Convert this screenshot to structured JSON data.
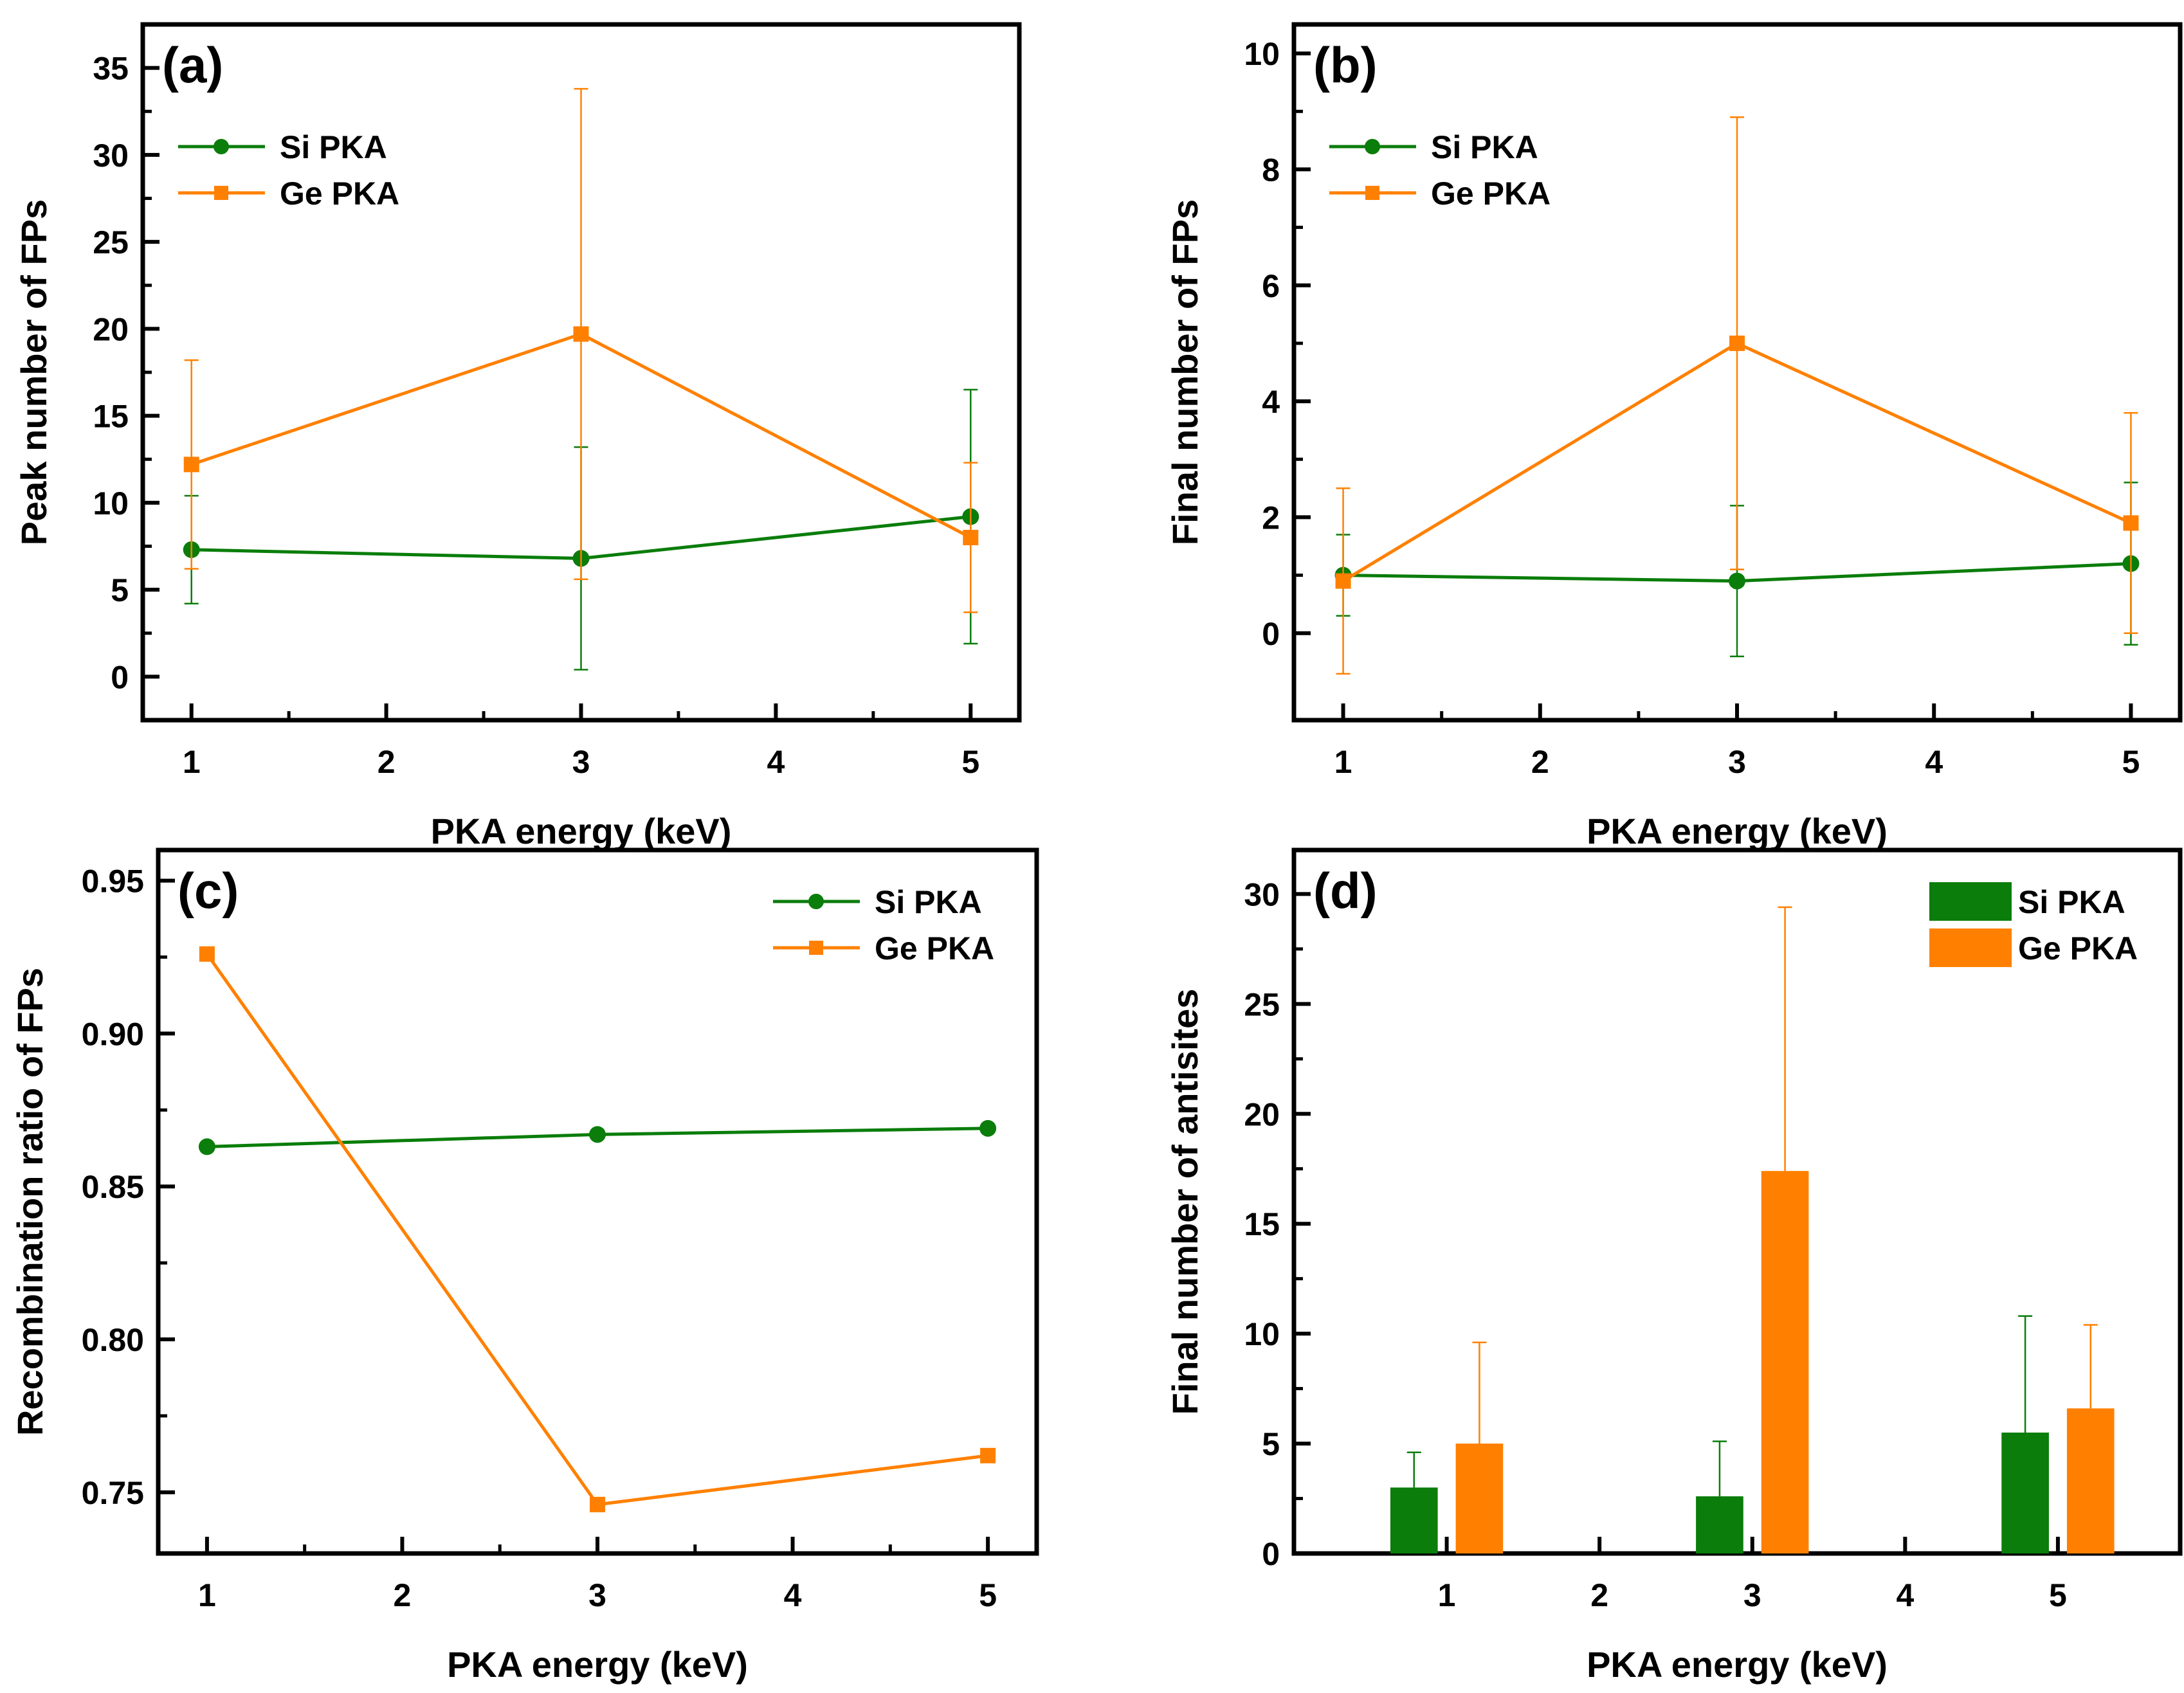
{
  "colors": {
    "si": "#0a7d0a",
    "ge": "#ff8000",
    "axis": "#000000"
  },
  "chart_data": [
    {
      "id": "a",
      "type": "line",
      "panel_label": "(a)",
      "xlabel": "PKA energy (keV)",
      "ylabel": "Peak number of FPs",
      "xlim": [
        0.75,
        5.25
      ],
      "ylim": [
        -2.5,
        37.5
      ],
      "xticks": [
        1,
        2,
        3,
        4,
        5
      ],
      "xtick_labels": [
        "1",
        "2",
        "3",
        "4",
        "5"
      ],
      "yticks": [
        0,
        5,
        10,
        15,
        20,
        25,
        30,
        35
      ],
      "ytick_labels": [
        "0",
        "5",
        "10",
        "15",
        "20",
        "25",
        "30",
        "35"
      ],
      "legend_position": "top-left",
      "x": [
        1,
        3,
        5
      ],
      "series": [
        {
          "name": "Si PKA",
          "marker": "circle",
          "color_key": "si",
          "values": [
            7.3,
            6.8,
            9.2
          ],
          "err": [
            3.1,
            6.4,
            7.3
          ]
        },
        {
          "name": "Ge PKA",
          "marker": "square",
          "color_key": "ge",
          "values": [
            12.2,
            19.7,
            8.0
          ],
          "err": [
            6.0,
            14.1,
            4.3
          ]
        }
      ]
    },
    {
      "id": "b",
      "type": "line",
      "panel_label": "(b)",
      "xlabel": "PKA energy (keV)",
      "ylabel": "Final number of FPs",
      "xlim": [
        0.75,
        5.25
      ],
      "ylim": [
        -1.5,
        10.5
      ],
      "xticks": [
        1,
        2,
        3,
        4,
        5
      ],
      "xtick_labels": [
        "1",
        "2",
        "3",
        "4",
        "5"
      ],
      "yticks": [
        0,
        2,
        4,
        6,
        8,
        10
      ],
      "ytick_labels": [
        "0",
        "2",
        "4",
        "6",
        "8",
        "10"
      ],
      "legend_position": "top-left",
      "x": [
        1,
        3,
        5
      ],
      "series": [
        {
          "name": "Si PKA",
          "marker": "circle",
          "color_key": "si",
          "values": [
            1.0,
            0.9,
            1.2
          ],
          "err": [
            0.7,
            1.3,
            1.4
          ]
        },
        {
          "name": "Ge PKA",
          "marker": "square",
          "color_key": "ge",
          "values": [
            0.9,
            5.0,
            1.9
          ],
          "err": [
            1.6,
            3.9,
            1.9
          ]
        }
      ]
    },
    {
      "id": "c",
      "type": "line",
      "panel_label": "(c)",
      "xlabel": "PKA energy (keV)",
      "ylabel": "Recombination ratio of FPs",
      "xlim": [
        0.75,
        5.25
      ],
      "ylim": [
        0.73,
        0.96
      ],
      "xticks": [
        1,
        2,
        3,
        4,
        5
      ],
      "xtick_labels": [
        "1",
        "2",
        "3",
        "4",
        "5"
      ],
      "yticks": [
        0.75,
        0.8,
        0.85,
        0.9,
        0.95
      ],
      "ytick_labels": [
        "0.75",
        "0.80",
        "0.85",
        "0.90",
        "0.95"
      ],
      "legend_position": "top-right",
      "x": [
        1,
        3,
        5
      ],
      "series": [
        {
          "name": "Si PKA",
          "marker": "circle",
          "color_key": "si",
          "values": [
            0.863,
            0.867,
            0.869
          ]
        },
        {
          "name": "Ge PKA",
          "marker": "square",
          "color_key": "ge",
          "values": [
            0.926,
            0.746,
            0.762
          ]
        }
      ]
    },
    {
      "id": "d",
      "type": "bar",
      "panel_label": "(d)",
      "xlabel": "PKA energy (keV)",
      "ylabel": "Final number of antisites",
      "xlim": [
        0.0,
        5.8
      ],
      "ylim": [
        0,
        32
      ],
      "xticks": [
        1,
        2,
        3,
        4,
        5
      ],
      "xtick_labels": [
        "1",
        "2",
        "3",
        "4",
        "5"
      ],
      "yticks": [
        0,
        5,
        10,
        15,
        20,
        25,
        30
      ],
      "ytick_labels": [
        "0",
        "5",
        "10",
        "15",
        "20",
        "25",
        "30"
      ],
      "legend_position": "top-right",
      "x": [
        1,
        3,
        5
      ],
      "series": [
        {
          "name": "Si PKA",
          "color_key": "si",
          "values": [
            3.0,
            2.6,
            5.5
          ],
          "err": [
            1.6,
            2.5,
            5.3
          ]
        },
        {
          "name": "Ge PKA",
          "color_key": "ge",
          "values": [
            5.0,
            17.4,
            6.6
          ],
          "err": [
            4.6,
            12.0,
            3.8
          ]
        }
      ]
    }
  ]
}
